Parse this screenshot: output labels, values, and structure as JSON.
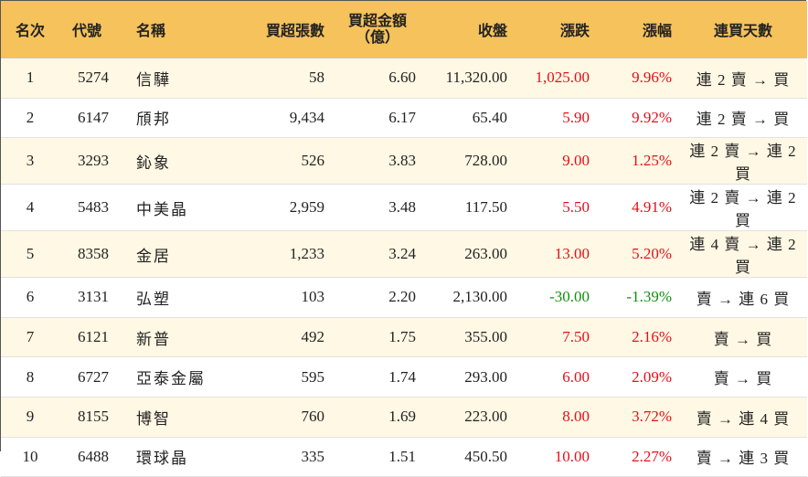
{
  "table": {
    "headers": {
      "rank": "名次",
      "code": "代號",
      "name": "名稱",
      "net_buy_shares": "買超張數",
      "net_buy_amount_line1": "買超金額",
      "net_buy_amount_line2": "（億）",
      "close": "收盤",
      "change": "漲跌",
      "change_pct": "漲幅",
      "consecutive_days": "連買天數"
    },
    "rows": [
      {
        "rank": "1",
        "code": "5274",
        "name": "信驊",
        "shares": "58",
        "amount": "6.60",
        "close": "11,320.00",
        "change": "1,025.00",
        "pct": "9.96%",
        "days": "連 2 賣 → 買",
        "dir": "up"
      },
      {
        "rank": "2",
        "code": "6147",
        "name": "頎邦",
        "shares": "9,434",
        "amount": "6.17",
        "close": "65.40",
        "change": "5.90",
        "pct": "9.92%",
        "days": "連 2 賣 → 買",
        "dir": "up"
      },
      {
        "rank": "3",
        "code": "3293",
        "name": "鈊象",
        "shares": "526",
        "amount": "3.83",
        "close": "728.00",
        "change": "9.00",
        "pct": "1.25%",
        "days": "連 2 賣 → 連 2 買",
        "dir": "up"
      },
      {
        "rank": "4",
        "code": "5483",
        "name": "中美晶",
        "shares": "2,959",
        "amount": "3.48",
        "close": "117.50",
        "change": "5.50",
        "pct": "4.91%",
        "days": "連 2 賣 → 連 2 買",
        "dir": "up"
      },
      {
        "rank": "5",
        "code": "8358",
        "name": "金居",
        "shares": "1,233",
        "amount": "3.24",
        "close": "263.00",
        "change": "13.00",
        "pct": "5.20%",
        "days": "連 4 賣 → 連 2 買",
        "dir": "up"
      },
      {
        "rank": "6",
        "code": "3131",
        "name": "弘塑",
        "shares": "103",
        "amount": "2.20",
        "close": "2,130.00",
        "change": "-30.00",
        "pct": "-1.39%",
        "days": "賣 → 連 6 買",
        "dir": "down"
      },
      {
        "rank": "7",
        "code": "6121",
        "name": "新普",
        "shares": "492",
        "amount": "1.75",
        "close": "355.00",
        "change": "7.50",
        "pct": "2.16%",
        "days": "賣 → 買",
        "dir": "up"
      },
      {
        "rank": "8",
        "code": "6727",
        "name": "亞泰金屬",
        "shares": "595",
        "amount": "1.74",
        "close": "293.00",
        "change": "6.00",
        "pct": "2.09%",
        "days": "賣 → 買",
        "dir": "up"
      },
      {
        "rank": "9",
        "code": "8155",
        "name": "博智",
        "shares": "760",
        "amount": "1.69",
        "close": "223.00",
        "change": "8.00",
        "pct": "3.72%",
        "days": "賣 → 連 4 買",
        "dir": "up"
      },
      {
        "rank": "10",
        "code": "6488",
        "name": "環球晶",
        "shares": "335",
        "amount": "1.51",
        "close": "450.50",
        "change": "10.00",
        "pct": "2.27%",
        "days": "賣 → 連 3 買",
        "dir": "up"
      }
    ]
  },
  "colors": {
    "header_bg": "#f5c25b",
    "odd_row_bg": "#fff8e4",
    "even_row_bg": "#ffffff",
    "up": "#e3101a",
    "down": "#118f11"
  }
}
